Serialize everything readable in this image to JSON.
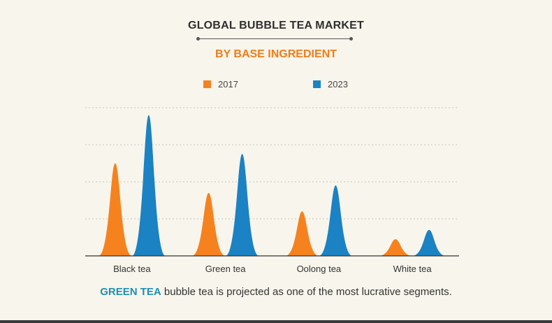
{
  "header": {
    "title": "GLOBAL BUBBLE TEA MARKET",
    "subtitle": "BY BASE INGREDIENT"
  },
  "legend": [
    {
      "label": "2017",
      "color": "#f5821f"
    },
    {
      "label": "2023",
      "color": "#1b82c4"
    }
  ],
  "footer": {
    "highlight": "GREEN TEA",
    "text": " bubble tea is projected as one of the most lucrative segments."
  },
  "chart_data": {
    "type": "area",
    "categories": [
      "Black tea",
      "Green tea",
      "Oolong tea",
      "White tea"
    ],
    "series": [
      {
        "name": "2017",
        "values": [
          2.5,
          1.7,
          1.2,
          0.45
        ],
        "color": "#f5821f"
      },
      {
        "name": "2023",
        "values": [
          3.8,
          2.75,
          1.9,
          0.7
        ],
        "color": "#1b82c4"
      }
    ],
    "ylim": [
      0,
      4
    ],
    "grid": true,
    "legend_position": "top"
  }
}
